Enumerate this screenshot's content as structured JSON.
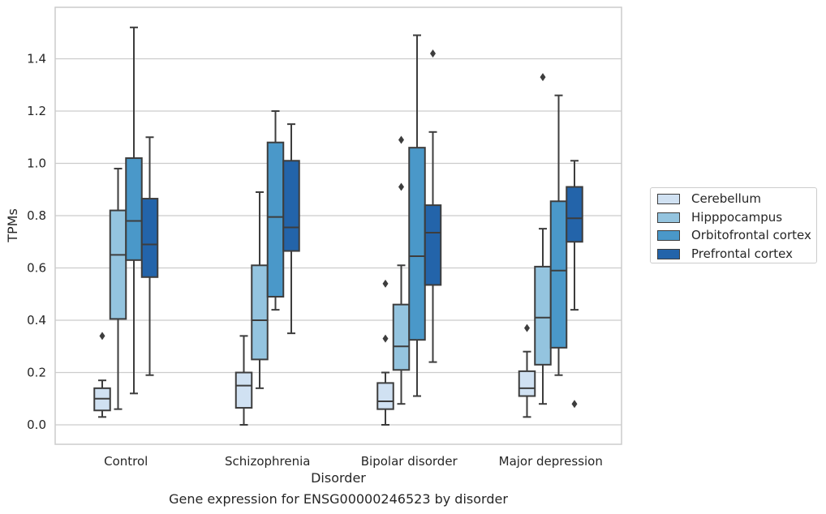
{
  "chart_data": {
    "type": "boxplot",
    "caption": "Gene expression for ENSG00000246523 by disorder",
    "xlabel": "Disorder",
    "ylabel": "TPMs",
    "ylim": [
      -0.07,
      1.6
    ],
    "yticks": [
      "0.0",
      "0.2",
      "0.4",
      "0.6",
      "0.8",
      "1.0",
      "1.2",
      "1.4"
    ],
    "grid": "horizontal",
    "legend_position": "right",
    "categories": [
      "Control",
      "Schizophrenia",
      "Bipolar disorder",
      "Major depression"
    ],
    "series": [
      {
        "name": "Cerebellum",
        "color": "#d0e1f2",
        "boxes": [
          {
            "whislo": 0.03,
            "q1": 0.055,
            "med": 0.1,
            "q3": 0.14,
            "whishi": 0.17,
            "fliers": [
              0.34
            ]
          },
          {
            "whislo": 0.0,
            "q1": 0.065,
            "med": 0.15,
            "q3": 0.2,
            "whishi": 0.34,
            "fliers": []
          },
          {
            "whislo": 0.0,
            "q1": 0.06,
            "med": 0.09,
            "q3": 0.16,
            "whishi": 0.2,
            "fliers": [
              0.33,
              0.54
            ]
          },
          {
            "whislo": 0.03,
            "q1": 0.11,
            "med": 0.14,
            "q3": 0.205,
            "whishi": 0.28,
            "fliers": [
              0.37
            ]
          }
        ]
      },
      {
        "name": "Hipppocampus",
        "color": "#94c4df",
        "boxes": [
          {
            "whislo": 0.06,
            "q1": 0.405,
            "med": 0.65,
            "q3": 0.82,
            "whishi": 0.98,
            "fliers": []
          },
          {
            "whislo": 0.14,
            "q1": 0.25,
            "med": 0.4,
            "q3": 0.61,
            "whishi": 0.89,
            "fliers": []
          },
          {
            "whislo": 0.08,
            "q1": 0.21,
            "med": 0.3,
            "q3": 0.46,
            "whishi": 0.61,
            "fliers": [
              0.91,
              1.09
            ]
          },
          {
            "whislo": 0.08,
            "q1": 0.23,
            "med": 0.41,
            "q3": 0.605,
            "whishi": 0.75,
            "fliers": [
              1.33
            ]
          }
        ]
      },
      {
        "name": "Orbitofrontal cortex",
        "color": "#4a98c9",
        "boxes": [
          {
            "whislo": 0.12,
            "q1": 0.63,
            "med": 0.78,
            "q3": 1.02,
            "whishi": 1.52,
            "fliers": []
          },
          {
            "whislo": 0.44,
            "q1": 0.49,
            "med": 0.795,
            "q3": 1.08,
            "whishi": 1.2,
            "fliers": []
          },
          {
            "whislo": 0.11,
            "q1": 0.325,
            "med": 0.645,
            "q3": 1.06,
            "whishi": 1.49,
            "fliers": []
          },
          {
            "whislo": 0.19,
            "q1": 0.295,
            "med": 0.59,
            "q3": 0.855,
            "whishi": 1.26,
            "fliers": []
          }
        ]
      },
      {
        "name": "Prefrontal cortex",
        "color": "#2364aa",
        "boxes": [
          {
            "whislo": 0.19,
            "q1": 0.565,
            "med": 0.69,
            "q3": 0.865,
            "whishi": 1.1,
            "fliers": []
          },
          {
            "whislo": 0.35,
            "q1": 0.665,
            "med": 0.755,
            "q3": 1.01,
            "whishi": 1.15,
            "fliers": []
          },
          {
            "whislo": 0.24,
            "q1": 0.535,
            "med": 0.735,
            "q3": 0.84,
            "whishi": 1.12,
            "fliers": [
              1.42
            ]
          },
          {
            "whislo": 0.44,
            "q1": 0.7,
            "med": 0.79,
            "q3": 0.91,
            "whishi": 1.01,
            "fliers": [
              0.08
            ]
          }
        ]
      }
    ]
  }
}
